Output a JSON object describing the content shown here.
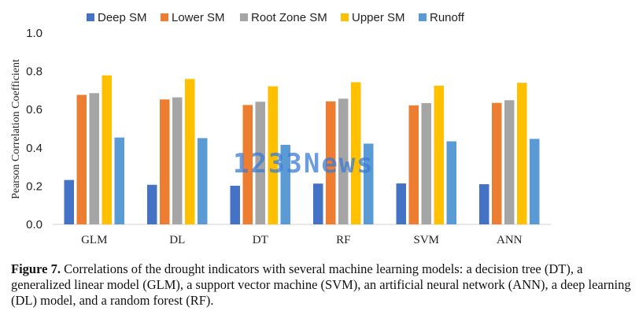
{
  "chart_data": {
    "type": "bar",
    "categories": [
      "GLM",
      "DL",
      "DT",
      "RF",
      "SVM",
      "ANN"
    ],
    "series": [
      {
        "name": "Deep SM",
        "color": "#4472c4",
        "values": [
          0.232,
          0.207,
          0.202,
          0.213,
          0.214,
          0.21
        ]
      },
      {
        "name": "Lower SM",
        "color": "#ed7d31",
        "values": [
          0.677,
          0.653,
          0.624,
          0.643,
          0.622,
          0.635
        ]
      },
      {
        "name": "Root Zone SM",
        "color": "#a5a5a5",
        "values": [
          0.686,
          0.664,
          0.641,
          0.657,
          0.634,
          0.649
        ]
      },
      {
        "name": "Upper SM",
        "color": "#ffc000",
        "values": [
          0.779,
          0.76,
          0.722,
          0.743,
          0.725,
          0.74
        ]
      },
      {
        "name": "Runoff",
        "color": "#5b9bd5",
        "values": [
          0.454,
          0.451,
          0.416,
          0.422,
          0.434,
          0.447
        ]
      }
    ],
    "ylabel": "Pearson Correlation Coefficient",
    "xlabel": "",
    "ylim": [
      0,
      1
    ],
    "y_ticks": [
      "0.0",
      "0.2",
      "0.4",
      "0.6",
      "0.8",
      "1.0"
    ],
    "grid": false,
    "legend_position": "top"
  },
  "watermark": "1233News",
  "caption": {
    "label": "Figure 7.",
    "text": "Correlations of the drought indicators with several machine learning models: a decision tree (DT), a generalized linear model (GLM), a support vector machine (SVM), an artificial neural network (ANN), a deep learning (DL) model, and a random forest (RF)."
  }
}
